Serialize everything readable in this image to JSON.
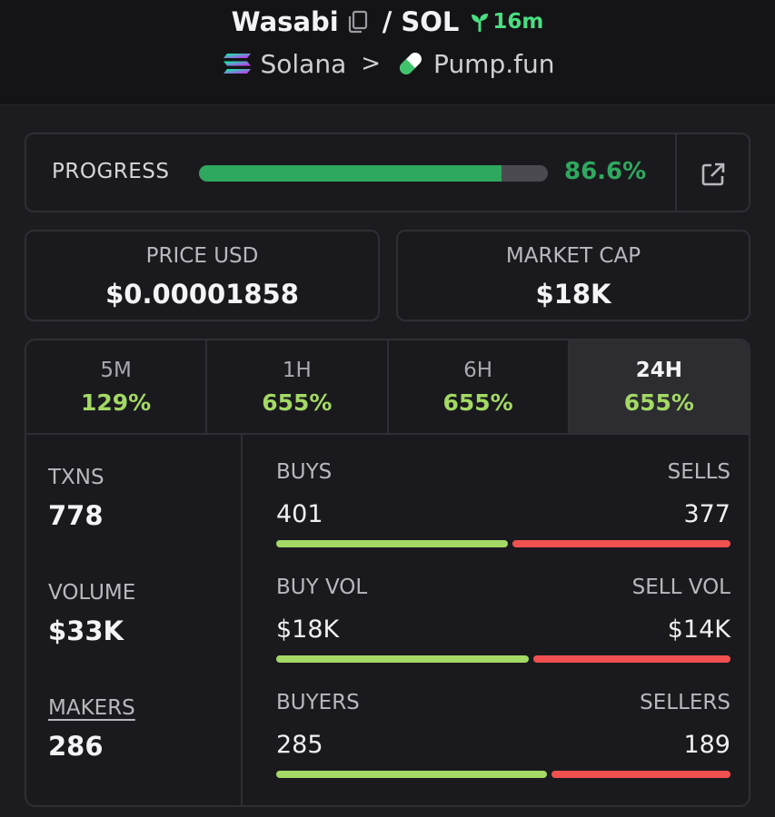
{
  "header": {
    "token_name": "Wasabi",
    "separator": "/",
    "quote": "SOL",
    "age": "16m",
    "chain": "Solana",
    "breadcrumb_sep": ">",
    "dex": "Pump.fun"
  },
  "progress": {
    "label": "PROGRESS",
    "value_text": "86.6%",
    "fraction": 0.866
  },
  "price": {
    "label": "PRICE USD",
    "value": "$0.00001858"
  },
  "market_cap": {
    "label": "MARKET CAP",
    "value": "$18K"
  },
  "tabs": [
    {
      "label": "5M",
      "change": "129%",
      "active": false
    },
    {
      "label": "1H",
      "change": "655%",
      "active": false
    },
    {
      "label": "6H",
      "change": "655%",
      "active": false
    },
    {
      "label": "24H",
      "change": "655%",
      "active": true
    }
  ],
  "metrics": {
    "txns": {
      "label": "TXNS",
      "value": "778"
    },
    "volume": {
      "label": "VOLUME",
      "value": "$33K"
    },
    "makers": {
      "label": "MAKERS",
      "value": "286"
    }
  },
  "splits": {
    "txns": {
      "left_label": "BUYS",
      "left_value": "401",
      "right_label": "SELLS",
      "right_value": "377",
      "buy_share": 0.515
    },
    "volume": {
      "left_label": "BUY VOL",
      "left_value": "$18K",
      "right_label": "SELL VOL",
      "right_value": "$14K",
      "buy_share": 0.5625
    },
    "makers": {
      "left_label": "BUYERS",
      "left_value": "285",
      "right_label": "SELLERS",
      "right_value": "189",
      "buy_share": 0.601
    }
  },
  "colors": {
    "progress_green": "#2fa85f",
    "change_green": "#a3d964",
    "buy_bar": "#a3d964",
    "sell_bar": "#f0504f",
    "age_green": "#4ade80"
  },
  "icons": {
    "copy": "copy-icon",
    "age": "sprout-icon",
    "chain": "solana-logo-icon",
    "dex": "pill-icon",
    "external": "external-link-icon"
  }
}
